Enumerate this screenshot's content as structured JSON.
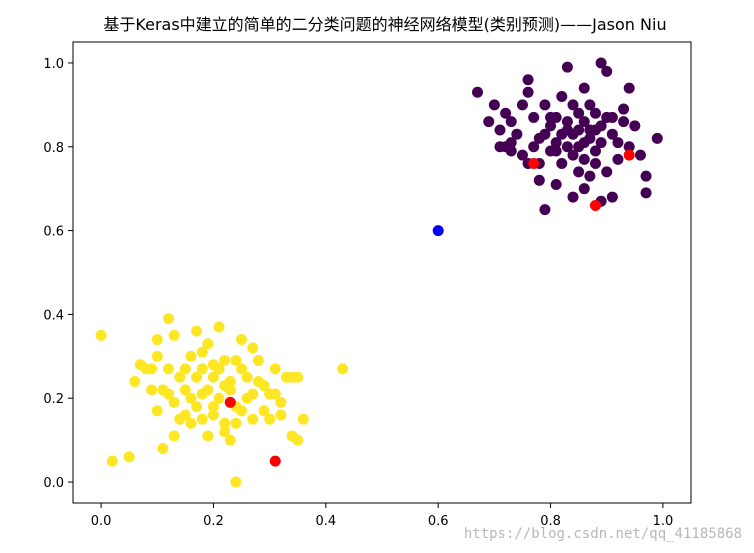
{
  "chart_data": {
    "type": "scatter",
    "title": "基于Keras中建立的简单的二分类问题的神经网络模型(类别预测)——Jason Niu",
    "xlabel": "",
    "ylabel": "",
    "xlim": [
      -0.05,
      1.05
    ],
    "ylim": [
      -0.05,
      1.05
    ],
    "xticks": [
      "0.0",
      "0.2",
      "0.4",
      "0.6",
      "0.8",
      "1.0"
    ],
    "yticks": [
      "0.0",
      "0.2",
      "0.4",
      "0.6",
      "0.8",
      "1.0"
    ],
    "grid": false,
    "legend": "none",
    "colors": {
      "class1": "#440154",
      "class0": "#fde725",
      "predicted": "#ff0000",
      "new_point": "#0000ff"
    },
    "series": [
      {
        "color_key": "class1",
        "points": [
          [
            0.67,
            0.93
          ],
          [
            0.69,
            0.86
          ],
          [
            0.7,
            0.9
          ],
          [
            0.71,
            0.84
          ],
          [
            0.72,
            0.88
          ],
          [
            0.73,
            0.81
          ],
          [
            0.75,
            0.9
          ],
          [
            0.76,
            0.96
          ],
          [
            0.76,
            0.93
          ],
          [
            0.77,
            0.87
          ],
          [
            0.78,
            0.82
          ],
          [
            0.79,
            0.9
          ],
          [
            0.8,
            0.85
          ],
          [
            0.81,
            0.79
          ],
          [
            0.82,
            0.92
          ],
          [
            0.83,
            0.99
          ],
          [
            0.83,
            0.86
          ],
          [
            0.84,
            0.83
          ],
          [
            0.85,
            0.88
          ],
          [
            0.86,
            0.81
          ],
          [
            0.86,
            0.94
          ],
          [
            0.87,
            0.9
          ],
          [
            0.87,
            0.84
          ],
          [
            0.88,
            0.79
          ],
          [
            0.89,
            1.0
          ],
          [
            0.9,
            0.98
          ],
          [
            0.9,
            0.87
          ],
          [
            0.91,
            0.83
          ],
          [
            0.92,
            0.77
          ],
          [
            0.93,
            0.89
          ],
          [
            0.94,
            0.94
          ],
          [
            0.95,
            0.85
          ],
          [
            0.97,
            0.73
          ],
          [
            0.97,
            0.69
          ],
          [
            0.99,
            0.82
          ],
          [
            0.71,
            0.8
          ],
          [
            0.73,
            0.86
          ],
          [
            0.74,
            0.83
          ],
          [
            0.75,
            0.78
          ],
          [
            0.77,
            0.8
          ],
          [
            0.78,
            0.76
          ],
          [
            0.79,
            0.83
          ],
          [
            0.8,
            0.79
          ],
          [
            0.81,
            0.87
          ],
          [
            0.82,
            0.76
          ],
          [
            0.83,
            0.8
          ],
          [
            0.84,
            0.78
          ],
          [
            0.85,
            0.74
          ],
          [
            0.85,
            0.84
          ],
          [
            0.86,
            0.77
          ],
          [
            0.87,
            0.73
          ],
          [
            0.88,
            0.76
          ],
          [
            0.88,
            0.84
          ],
          [
            0.89,
            0.81
          ],
          [
            0.9,
            0.74
          ],
          [
            0.91,
            0.87
          ],
          [
            0.92,
            0.81
          ],
          [
            0.93,
            0.86
          ],
          [
            0.94,
            0.8
          ],
          [
            0.96,
            0.78
          ],
          [
            0.79,
            0.65
          ],
          [
            0.84,
            0.68
          ],
          [
            0.86,
            0.7
          ],
          [
            0.89,
            0.67
          ],
          [
            0.91,
            0.68
          ],
          [
            0.81,
            0.71
          ],
          [
            0.76,
            0.76
          ],
          [
            0.78,
            0.72
          ],
          [
            0.73,
            0.79
          ],
          [
            0.72,
            0.8
          ],
          [
            0.8,
            0.87
          ],
          [
            0.82,
            0.83
          ],
          [
            0.84,
            0.9
          ],
          [
            0.86,
            0.86
          ],
          [
            0.88,
            0.88
          ],
          [
            0.89,
            0.85
          ],
          [
            0.81,
            0.81
          ],
          [
            0.83,
            0.84
          ],
          [
            0.85,
            0.8
          ],
          [
            0.87,
            0.82
          ]
        ]
      },
      {
        "color_key": "class0",
        "points": [
          [
            0.0,
            0.35
          ],
          [
            0.02,
            0.05
          ],
          [
            0.05,
            0.06
          ],
          [
            0.06,
            0.24
          ],
          [
            0.07,
            0.28
          ],
          [
            0.08,
            0.27
          ],
          [
            0.09,
            0.22
          ],
          [
            0.1,
            0.3
          ],
          [
            0.1,
            0.17
          ],
          [
            0.11,
            0.08
          ],
          [
            0.11,
            0.22
          ],
          [
            0.12,
            0.39
          ],
          [
            0.12,
            0.27
          ],
          [
            0.13,
            0.35
          ],
          [
            0.13,
            0.19
          ],
          [
            0.14,
            0.25
          ],
          [
            0.15,
            0.16
          ],
          [
            0.15,
            0.22
          ],
          [
            0.16,
            0.3
          ],
          [
            0.17,
            0.36
          ],
          [
            0.17,
            0.18
          ],
          [
            0.18,
            0.27
          ],
          [
            0.18,
            0.21
          ],
          [
            0.19,
            0.33
          ],
          [
            0.19,
            0.11
          ],
          [
            0.2,
            0.25
          ],
          [
            0.2,
            0.16
          ],
          [
            0.21,
            0.37
          ],
          [
            0.21,
            0.2
          ],
          [
            0.22,
            0.29
          ],
          [
            0.22,
            0.14
          ],
          [
            0.23,
            0.24
          ],
          [
            0.23,
            0.1
          ],
          [
            0.24,
            0.0
          ],
          [
            0.24,
            0.18
          ],
          [
            0.25,
            0.34
          ],
          [
            0.25,
            0.27
          ],
          [
            0.26,
            0.2
          ],
          [
            0.27,
            0.32
          ],
          [
            0.27,
            0.15
          ],
          [
            0.28,
            0.24
          ],
          [
            0.29,
            0.17
          ],
          [
            0.3,
            0.21
          ],
          [
            0.31,
            0.27
          ],
          [
            0.32,
            0.16
          ],
          [
            0.33,
            0.25
          ],
          [
            0.34,
            0.11
          ],
          [
            0.35,
            0.25
          ],
          [
            0.35,
            0.1
          ],
          [
            0.36,
            0.15
          ],
          [
            0.43,
            0.27
          ],
          [
            0.09,
            0.27
          ],
          [
            0.1,
            0.34
          ],
          [
            0.12,
            0.21
          ],
          [
            0.14,
            0.15
          ],
          [
            0.15,
            0.27
          ],
          [
            0.16,
            0.2
          ],
          [
            0.17,
            0.25
          ],
          [
            0.18,
            0.31
          ],
          [
            0.19,
            0.22
          ],
          [
            0.2,
            0.18
          ],
          [
            0.21,
            0.27
          ],
          [
            0.22,
            0.12
          ],
          [
            0.23,
            0.22
          ],
          [
            0.24,
            0.29
          ],
          [
            0.25,
            0.17
          ],
          [
            0.26,
            0.25
          ],
          [
            0.27,
            0.21
          ],
          [
            0.28,
            0.29
          ],
          [
            0.29,
            0.23
          ],
          [
            0.3,
            0.15
          ],
          [
            0.31,
            0.21
          ],
          [
            0.32,
            0.19
          ],
          [
            0.34,
            0.25
          ],
          [
            0.13,
            0.11
          ],
          [
            0.16,
            0.14
          ],
          [
            0.18,
            0.15
          ],
          [
            0.2,
            0.28
          ],
          [
            0.22,
            0.23
          ],
          [
            0.24,
            0.14
          ]
        ]
      },
      {
        "color_key": "predicted",
        "points": [
          [
            0.77,
            0.76
          ],
          [
            0.88,
            0.66
          ],
          [
            0.94,
            0.78
          ],
          [
            0.23,
            0.19
          ],
          [
            0.31,
            0.05
          ]
        ]
      },
      {
        "color_key": "new_point",
        "points": [
          [
            0.6,
            0.6
          ]
        ]
      }
    ]
  },
  "watermark": "https://blog.csdn.net/qq_41185868"
}
